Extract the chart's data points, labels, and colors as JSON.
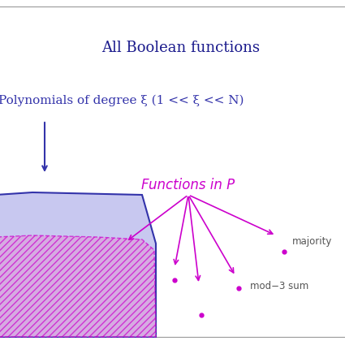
{
  "title": "All Boolean functions",
  "title_color": "#1a1a8c",
  "title_fontsize": 13,
  "poly_label": "Polynomials of degree ξ (1 << ξ << N)",
  "poly_label_color": "#3333aa",
  "poly_label_fontsize": 11,
  "func_label": "Functions in P",
  "func_label_color": "#cc00cc",
  "func_label_fontsize": 12,
  "majority_label": "majority",
  "majority_color": "#555555",
  "mod3_label": "mod−3 sum",
  "mod3_color": "#555555",
  "bg_color": "#ffffff",
  "outer_poly_color": "#c8c8f0",
  "outer_poly_edge": "#3333aa",
  "hatch_poly_color": "#dda0dd",
  "hatch_edge": "#cc00cc",
  "arrow_color": "#3333aa",
  "fanout_arrow_color": "#cc00cc",
  "dot_color": "#cc00cc",
  "top_line_color": "#999999",
  "bot_line_color": "#999999",
  "label_fontsize": 8.5,
  "fig_width": 4.25,
  "fig_height": 4.25,
  "dpi": 100
}
